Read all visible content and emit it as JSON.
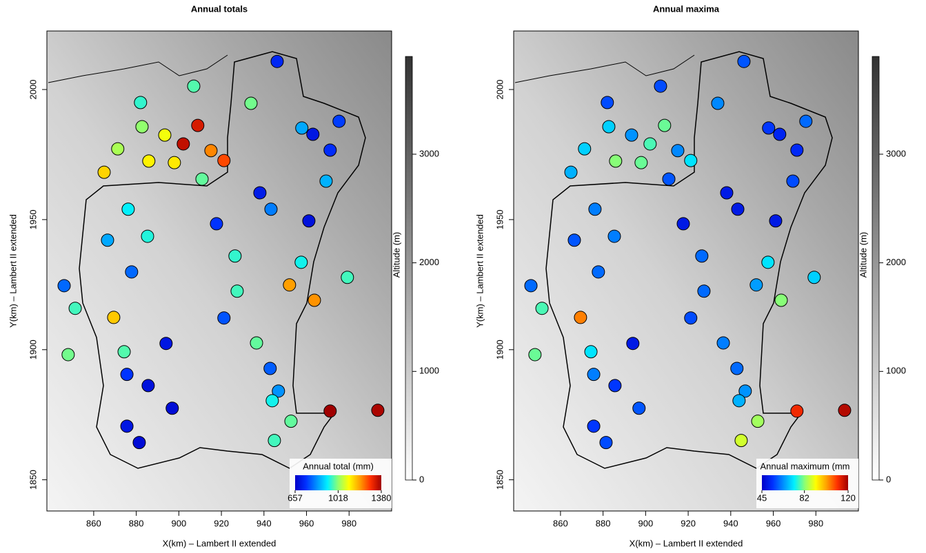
{
  "chart_data": [
    {
      "type": "scatter",
      "title": "Annual totals",
      "x_label": "X(km) – Lambert II extended",
      "y_label": "Y(km) – Lambert II extended",
      "xlim": [
        838,
        1000
      ],
      "ylim": [
        1838,
        2022.5
      ],
      "xticks": [
        860,
        880,
        900,
        920,
        940,
        960,
        980
      ],
      "yticks": [
        1850,
        1900,
        1950,
        2000
      ],
      "x": [
        946.2,
        907.0,
        933.9,
        882.0,
        882.7,
        893.4,
        908.9,
        902.1,
        915.1,
        921.2,
        871.3,
        885.9,
        897.9,
        864.9,
        910.9,
        957.8,
        963.0,
        975.3,
        971.1,
        969.2,
        938.1,
        943.3,
        961.1,
        917.7,
        876.2,
        885.3,
        866.5,
        926.4,
        877.8,
        957.5,
        846.1,
        979.2,
        952.0,
        927.4,
        963.7,
        851.3,
        869.4,
        921.2,
        936.5,
        894.0,
        848.0,
        874.3,
        942.9,
        875.6,
        946.8,
        885.6,
        943.9,
        896.9,
        952.7,
        875.6,
        971.1,
        993.5,
        881.4,
        944.9
      ],
      "y": [
        2010.8,
        2001.3,
        1994.7,
        1995.0,
        1985.7,
        1982.5,
        1986.2,
        1979.1,
        1976.5,
        1972.7,
        1977.2,
        1972.5,
        1971.9,
        1968.2,
        1965.6,
        1985.2,
        1982.8,
        1987.8,
        1976.7,
        1964.8,
        1960.3,
        1954.0,
        1949.5,
        1948.4,
        1954.0,
        1943.6,
        1942.1,
        1936.0,
        1929.9,
        1933.6,
        1924.6,
        1927.8,
        1924.9,
        1922.5,
        1919.0,
        1915.9,
        1912.4,
        1912.2,
        1902.6,
        1902.4,
        1898.1,
        1899.2,
        1892.8,
        1890.5,
        1884.1,
        1886.2,
        1880.4,
        1877.5,
        1872.5,
        1870.6,
        1876.4,
        1876.7,
        1864.3,
        1865.1
      ],
      "values": [
        730,
        980,
        1000,
        960,
        1020,
        1100,
        1330,
        1350,
        1220,
        1270,
        1040,
        1120,
        1130,
        1150,
        990,
        860,
        700,
        760,
        740,
        870,
        710,
        820,
        690,
        750,
        930,
        950,
        860,
        960,
        800,
        940,
        800,
        970,
        1200,
        970,
        1210,
        970,
        1160,
        780,
        990,
        700,
        1000,
        980,
        790,
        750,
        840,
        690,
        940,
        680,
        990,
        700,
        1380,
        1370,
        680,
        970
      ],
      "color_label": "Annual total (mm)",
      "clim": [
        657,
        1380
      ],
      "cticks": [
        657,
        1018,
        1380
      ],
      "colormap": [
        "#0000c8",
        "#0030ff",
        "#0090ff",
        "#00f0ff",
        "#90ff70",
        "#ffff00",
        "#ffa000",
        "#ff3000",
        "#a00000"
      ],
      "background": {
        "label": "Altitude (m)",
        "lim": [
          0,
          3900
        ],
        "ticks": [
          0,
          1000,
          2000,
          3000
        ],
        "colors": [
          "#ffffff",
          "#333333"
        ]
      }
    },
    {
      "type": "scatter",
      "title": "Annual maxima",
      "x_label": "X(km) – Lambert II extended",
      "y_label": "Y(km) – Lambert II extended",
      "xlim": [
        838,
        1000
      ],
      "ylim": [
        1838,
        2022.5
      ],
      "xticks": [
        860,
        880,
        900,
        920,
        940,
        960,
        980
      ],
      "yticks": [
        1850,
        1900,
        1950,
        2000
      ],
      "x": [
        946.2,
        907.0,
        933.9,
        882.0,
        882.7,
        893.4,
        908.9,
        902.1,
        915.1,
        921.2,
        871.3,
        885.9,
        897.9,
        864.9,
        910.9,
        957.8,
        963.0,
        975.3,
        971.1,
        969.2,
        938.1,
        943.3,
        961.1,
        917.7,
        876.2,
        885.3,
        866.5,
        926.4,
        877.8,
        957.5,
        846.1,
        979.2,
        952.0,
        927.4,
        963.7,
        851.3,
        869.4,
        921.2,
        936.5,
        894.0,
        848.0,
        874.3,
        942.9,
        875.6,
        946.8,
        885.6,
        943.9,
        896.9,
        952.7,
        875.6,
        971.1,
        993.5,
        881.4,
        944.9
      ],
      "y": [
        2010.8,
        2001.3,
        1994.7,
        1995.0,
        1985.7,
        1982.5,
        1986.2,
        1979.1,
        1976.5,
        1972.7,
        1977.2,
        1972.5,
        1971.9,
        1968.2,
        1965.6,
        1985.2,
        1982.8,
        1987.8,
        1976.7,
        1964.8,
        1960.3,
        1954.0,
        1949.5,
        1948.4,
        1954.0,
        1943.6,
        1942.1,
        1936.0,
        1929.9,
        1933.6,
        1924.6,
        1927.8,
        1924.9,
        1922.5,
        1919.0,
        1915.9,
        1912.4,
        1912.2,
        1902.6,
        1902.4,
        1898.1,
        1899.2,
        1892.8,
        1890.5,
        1884.1,
        1886.2,
        1880.4,
        1877.5,
        1872.5,
        1870.6,
        1876.4,
        1876.7,
        1864.3,
        1865.1
      ],
      "values": [
        58,
        57,
        63,
        57,
        70,
        64,
        80,
        78,
        63,
        72,
        70,
        82,
        80,
        67,
        58,
        55,
        52,
        60,
        53,
        57,
        50,
        50,
        50,
        50,
        62,
        62,
        58,
        60,
        60,
        72,
        60,
        70,
        65,
        60,
        82,
        78,
        104,
        57,
        62,
        50,
        80,
        72,
        60,
        62,
        64,
        55,
        67,
        58,
        84,
        55,
        112,
        118,
        57,
        88
      ],
      "color_label": "Annual maximum (mm",
      "clim": [
        45,
        120
      ],
      "cticks": [
        45,
        82,
        120
      ],
      "colormap": [
        "#0000c8",
        "#0030ff",
        "#0090ff",
        "#00f0ff",
        "#90ff70",
        "#ffff00",
        "#ffa000",
        "#ff3000",
        "#a00000"
      ],
      "background": {
        "label": "Altitude (m)",
        "lim": [
          0,
          3900
        ],
        "ticks": [
          0,
          1000,
          2000,
          3000
        ],
        "colors": [
          "#ffffff",
          "#333333"
        ]
      }
    }
  ]
}
